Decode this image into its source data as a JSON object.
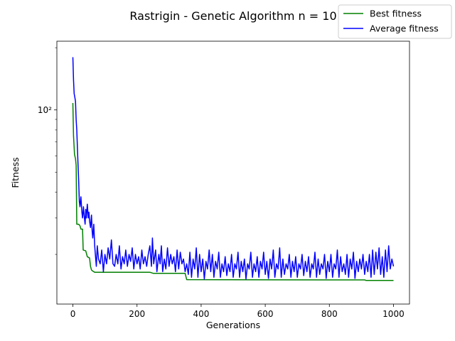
{
  "chart_data": {
    "type": "line",
    "title": "Rastrigin - Genetic Algorithm n = 10",
    "xlabel": "Generations",
    "ylabel": "Fitness",
    "xlim": [
      -50,
      1050
    ],
    "ylim": [
      11.5,
      215
    ],
    "yscale": "log",
    "grid": false,
    "legend_position": "top-right",
    "xticks": [
      0,
      200,
      400,
      600,
      800,
      1000
    ],
    "xtick_labels": [
      "0",
      "200",
      "400",
      "600",
      "800",
      "1000"
    ],
    "yticks_major": [
      100
    ],
    "ytick_labels": [
      "10²"
    ],
    "yticks_minor": [
      20,
      30,
      40,
      50,
      60,
      70,
      80,
      90,
      200
    ],
    "series": [
      {
        "name": "Best fitness",
        "color": "#008000",
        "points": [
          [
            0,
            108
          ],
          [
            2,
            75
          ],
          [
            5,
            61
          ],
          [
            8,
            58
          ],
          [
            10,
            54
          ],
          [
            12,
            28
          ],
          [
            18,
            28
          ],
          [
            22,
            27.5
          ],
          [
            25,
            26.5
          ],
          [
            30,
            26.5
          ],
          [
            32,
            21
          ],
          [
            40,
            20.8
          ],
          [
            45,
            19.5
          ],
          [
            52,
            19.2
          ],
          [
            55,
            17.5
          ],
          [
            58,
            16.8
          ],
          [
            62,
            16.6
          ],
          [
            68,
            16.4
          ],
          [
            240,
            16.4
          ],
          [
            250,
            16.2
          ],
          [
            350,
            16.2
          ],
          [
            355,
            15.1
          ],
          [
            800,
            15.05
          ],
          [
            910,
            15.05
          ],
          [
            915,
            14.95
          ],
          [
            1000,
            14.95
          ]
        ]
      },
      {
        "name": "Average fitness",
        "color": "#0000ff",
        "points": [
          [
            0,
            180
          ],
          [
            2,
            140
          ],
          [
            4,
            120
          ],
          [
            6,
            115
          ],
          [
            8,
            110
          ],
          [
            10,
            90
          ],
          [
            12,
            80
          ],
          [
            15,
            60
          ],
          [
            18,
            45
          ],
          [
            20,
            36
          ],
          [
            22,
            34
          ],
          [
            25,
            38
          ],
          [
            28,
            32
          ],
          [
            30,
            30
          ],
          [
            33,
            34
          ],
          [
            35,
            31
          ],
          [
            38,
            28
          ],
          [
            40,
            33
          ],
          [
            42,
            30
          ],
          [
            45,
            35
          ],
          [
            48,
            30
          ],
          [
            50,
            32
          ],
          [
            52,
            29
          ],
          [
            55,
            27
          ],
          [
            58,
            31
          ],
          [
            60,
            26
          ],
          [
            62,
            24
          ],
          [
            65,
            28
          ],
          [
            68,
            22
          ],
          [
            70,
            20
          ],
          [
            73,
            17.5
          ],
          [
            76,
            22
          ],
          [
            80,
            19
          ],
          [
            85,
            18
          ],
          [
            90,
            21
          ],
          [
            95,
            16.5
          ],
          [
            100,
            20
          ],
          [
            105,
            18
          ],
          [
            110,
            21.5
          ],
          [
            115,
            19
          ],
          [
            120,
            23.5
          ],
          [
            125,
            18
          ],
          [
            130,
            17.5
          ],
          [
            135,
            20
          ],
          [
            140,
            18
          ],
          [
            145,
            22
          ],
          [
            150,
            17
          ],
          [
            155,
            19.5
          ],
          [
            160,
            18
          ],
          [
            165,
            21
          ],
          [
            170,
            17.5
          ],
          [
            175,
            20
          ],
          [
            180,
            18.5
          ],
          [
            185,
            21.5
          ],
          [
            190,
            17
          ],
          [
            195,
            20
          ],
          [
            200,
            18
          ],
          [
            205,
            19.5
          ],
          [
            210,
            17
          ],
          [
            215,
            21
          ],
          [
            220,
            18
          ],
          [
            225,
            19.5
          ],
          [
            230,
            17.5
          ],
          [
            235,
            20
          ],
          [
            240,
            22
          ],
          [
            245,
            17.5
          ],
          [
            248,
            24
          ],
          [
            252,
            18
          ],
          [
            258,
            21
          ],
          [
            262,
            16.5
          ],
          [
            268,
            20
          ],
          [
            272,
            18
          ],
          [
            276,
            22
          ],
          [
            280,
            16.5
          ],
          [
            285,
            19
          ],
          [
            290,
            17
          ],
          [
            295,
            21.5
          ],
          [
            300,
            17.5
          ],
          [
            305,
            20
          ],
          [
            310,
            18
          ],
          [
            315,
            19.5
          ],
          [
            320,
            16.5
          ],
          [
            325,
            21
          ],
          [
            330,
            17
          ],
          [
            335,
            20.5
          ],
          [
            340,
            18
          ],
          [
            345,
            19
          ],
          [
            350,
            16.5
          ],
          [
            355,
            18
          ],
          [
            360,
            16
          ],
          [
            365,
            20.5
          ],
          [
            370,
            15.5
          ],
          [
            375,
            19
          ],
          [
            380,
            17
          ],
          [
            385,
            21.5
          ],
          [
            390,
            15.5
          ],
          [
            395,
            20
          ],
          [
            400,
            16.5
          ],
          [
            405,
            19
          ],
          [
            410,
            15.2
          ],
          [
            415,
            18.5
          ],
          [
            420,
            17
          ],
          [
            425,
            21
          ],
          [
            430,
            16.5
          ],
          [
            435,
            20
          ],
          [
            440,
            15.5
          ],
          [
            445,
            18.5
          ],
          [
            450,
            17
          ],
          [
            455,
            20.5
          ],
          [
            460,
            15.5
          ],
          [
            465,
            18
          ],
          [
            470,
            16.5
          ],
          [
            475,
            19.5
          ],
          [
            480,
            15.8
          ],
          [
            485,
            18
          ],
          [
            490,
            16.5
          ],
          [
            495,
            20
          ],
          [
            500,
            15.5
          ],
          [
            505,
            18
          ],
          [
            510,
            17
          ],
          [
            515,
            20.5
          ],
          [
            520,
            15.5
          ],
          [
            525,
            18.5
          ],
          [
            530,
            16.5
          ],
          [
            535,
            19
          ],
          [
            540,
            15.2
          ],
          [
            545,
            18
          ],
          [
            550,
            17
          ],
          [
            555,
            20.5
          ],
          [
            560,
            15.5
          ],
          [
            565,
            18
          ],
          [
            570,
            16.5
          ],
          [
            575,
            19.5
          ],
          [
            580,
            15.5
          ],
          [
            585,
            18.5
          ],
          [
            590,
            17
          ],
          [
            595,
            20.5
          ],
          [
            600,
            16
          ],
          [
            605,
            18.5
          ],
          [
            610,
            15.3
          ],
          [
            615,
            19
          ],
          [
            620,
            17
          ],
          [
            625,
            21
          ],
          [
            630,
            15.5
          ],
          [
            635,
            18
          ],
          [
            640,
            17
          ],
          [
            645,
            21.5
          ],
          [
            650,
            15.5
          ],
          [
            655,
            19
          ],
          [
            660,
            16
          ],
          [
            665,
            18
          ],
          [
            670,
            17
          ],
          [
            675,
            20
          ],
          [
            680,
            15.5
          ],
          [
            685,
            18.5
          ],
          [
            690,
            16.5
          ],
          [
            695,
            19.5
          ],
          [
            700,
            15.5
          ],
          [
            705,
            18
          ],
          [
            710,
            17
          ],
          [
            715,
            20
          ],
          [
            720,
            15.8
          ],
          [
            725,
            18.5
          ],
          [
            730,
            16.5
          ],
          [
            735,
            19.5
          ],
          [
            740,
            15.5
          ],
          [
            745,
            18
          ],
          [
            750,
            17
          ],
          [
            755,
            20.5
          ],
          [
            760,
            15.5
          ],
          [
            765,
            19
          ],
          [
            770,
            16
          ],
          [
            775,
            18
          ],
          [
            780,
            17
          ],
          [
            785,
            20
          ],
          [
            790,
            15.3
          ],
          [
            795,
            18.5
          ],
          [
            800,
            16.5
          ],
          [
            805,
            20
          ],
          [
            810,
            15.5
          ],
          [
            815,
            18
          ],
          [
            820,
            17
          ],
          [
            825,
            21
          ],
          [
            830,
            15.5
          ],
          [
            835,
            19.5
          ],
          [
            840,
            16.5
          ],
          [
            845,
            18
          ],
          [
            850,
            16
          ],
          [
            855,
            20
          ],
          [
            860,
            15.5
          ],
          [
            865,
            19
          ],
          [
            870,
            17
          ],
          [
            875,
            20.5
          ],
          [
            880,
            15.3
          ],
          [
            885,
            18.5
          ],
          [
            890,
            16.5
          ],
          [
            895,
            19
          ],
          [
            900,
            17
          ],
          [
            905,
            20
          ],
          [
            910,
            16
          ],
          [
            915,
            18.5
          ],
          [
            920,
            16.5
          ],
          [
            925,
            20
          ],
          [
            930,
            15.5
          ],
          [
            935,
            21
          ],
          [
            940,
            16
          ],
          [
            945,
            20.5
          ],
          [
            950,
            17
          ],
          [
            955,
            21.5
          ],
          [
            960,
            16
          ],
          [
            965,
            19.5
          ],
          [
            970,
            15.5
          ],
          [
            975,
            21
          ],
          [
            980,
            16.5
          ],
          [
            985,
            22
          ],
          [
            990,
            17
          ],
          [
            995,
            19
          ],
          [
            1000,
            17.5
          ]
        ]
      }
    ]
  }
}
